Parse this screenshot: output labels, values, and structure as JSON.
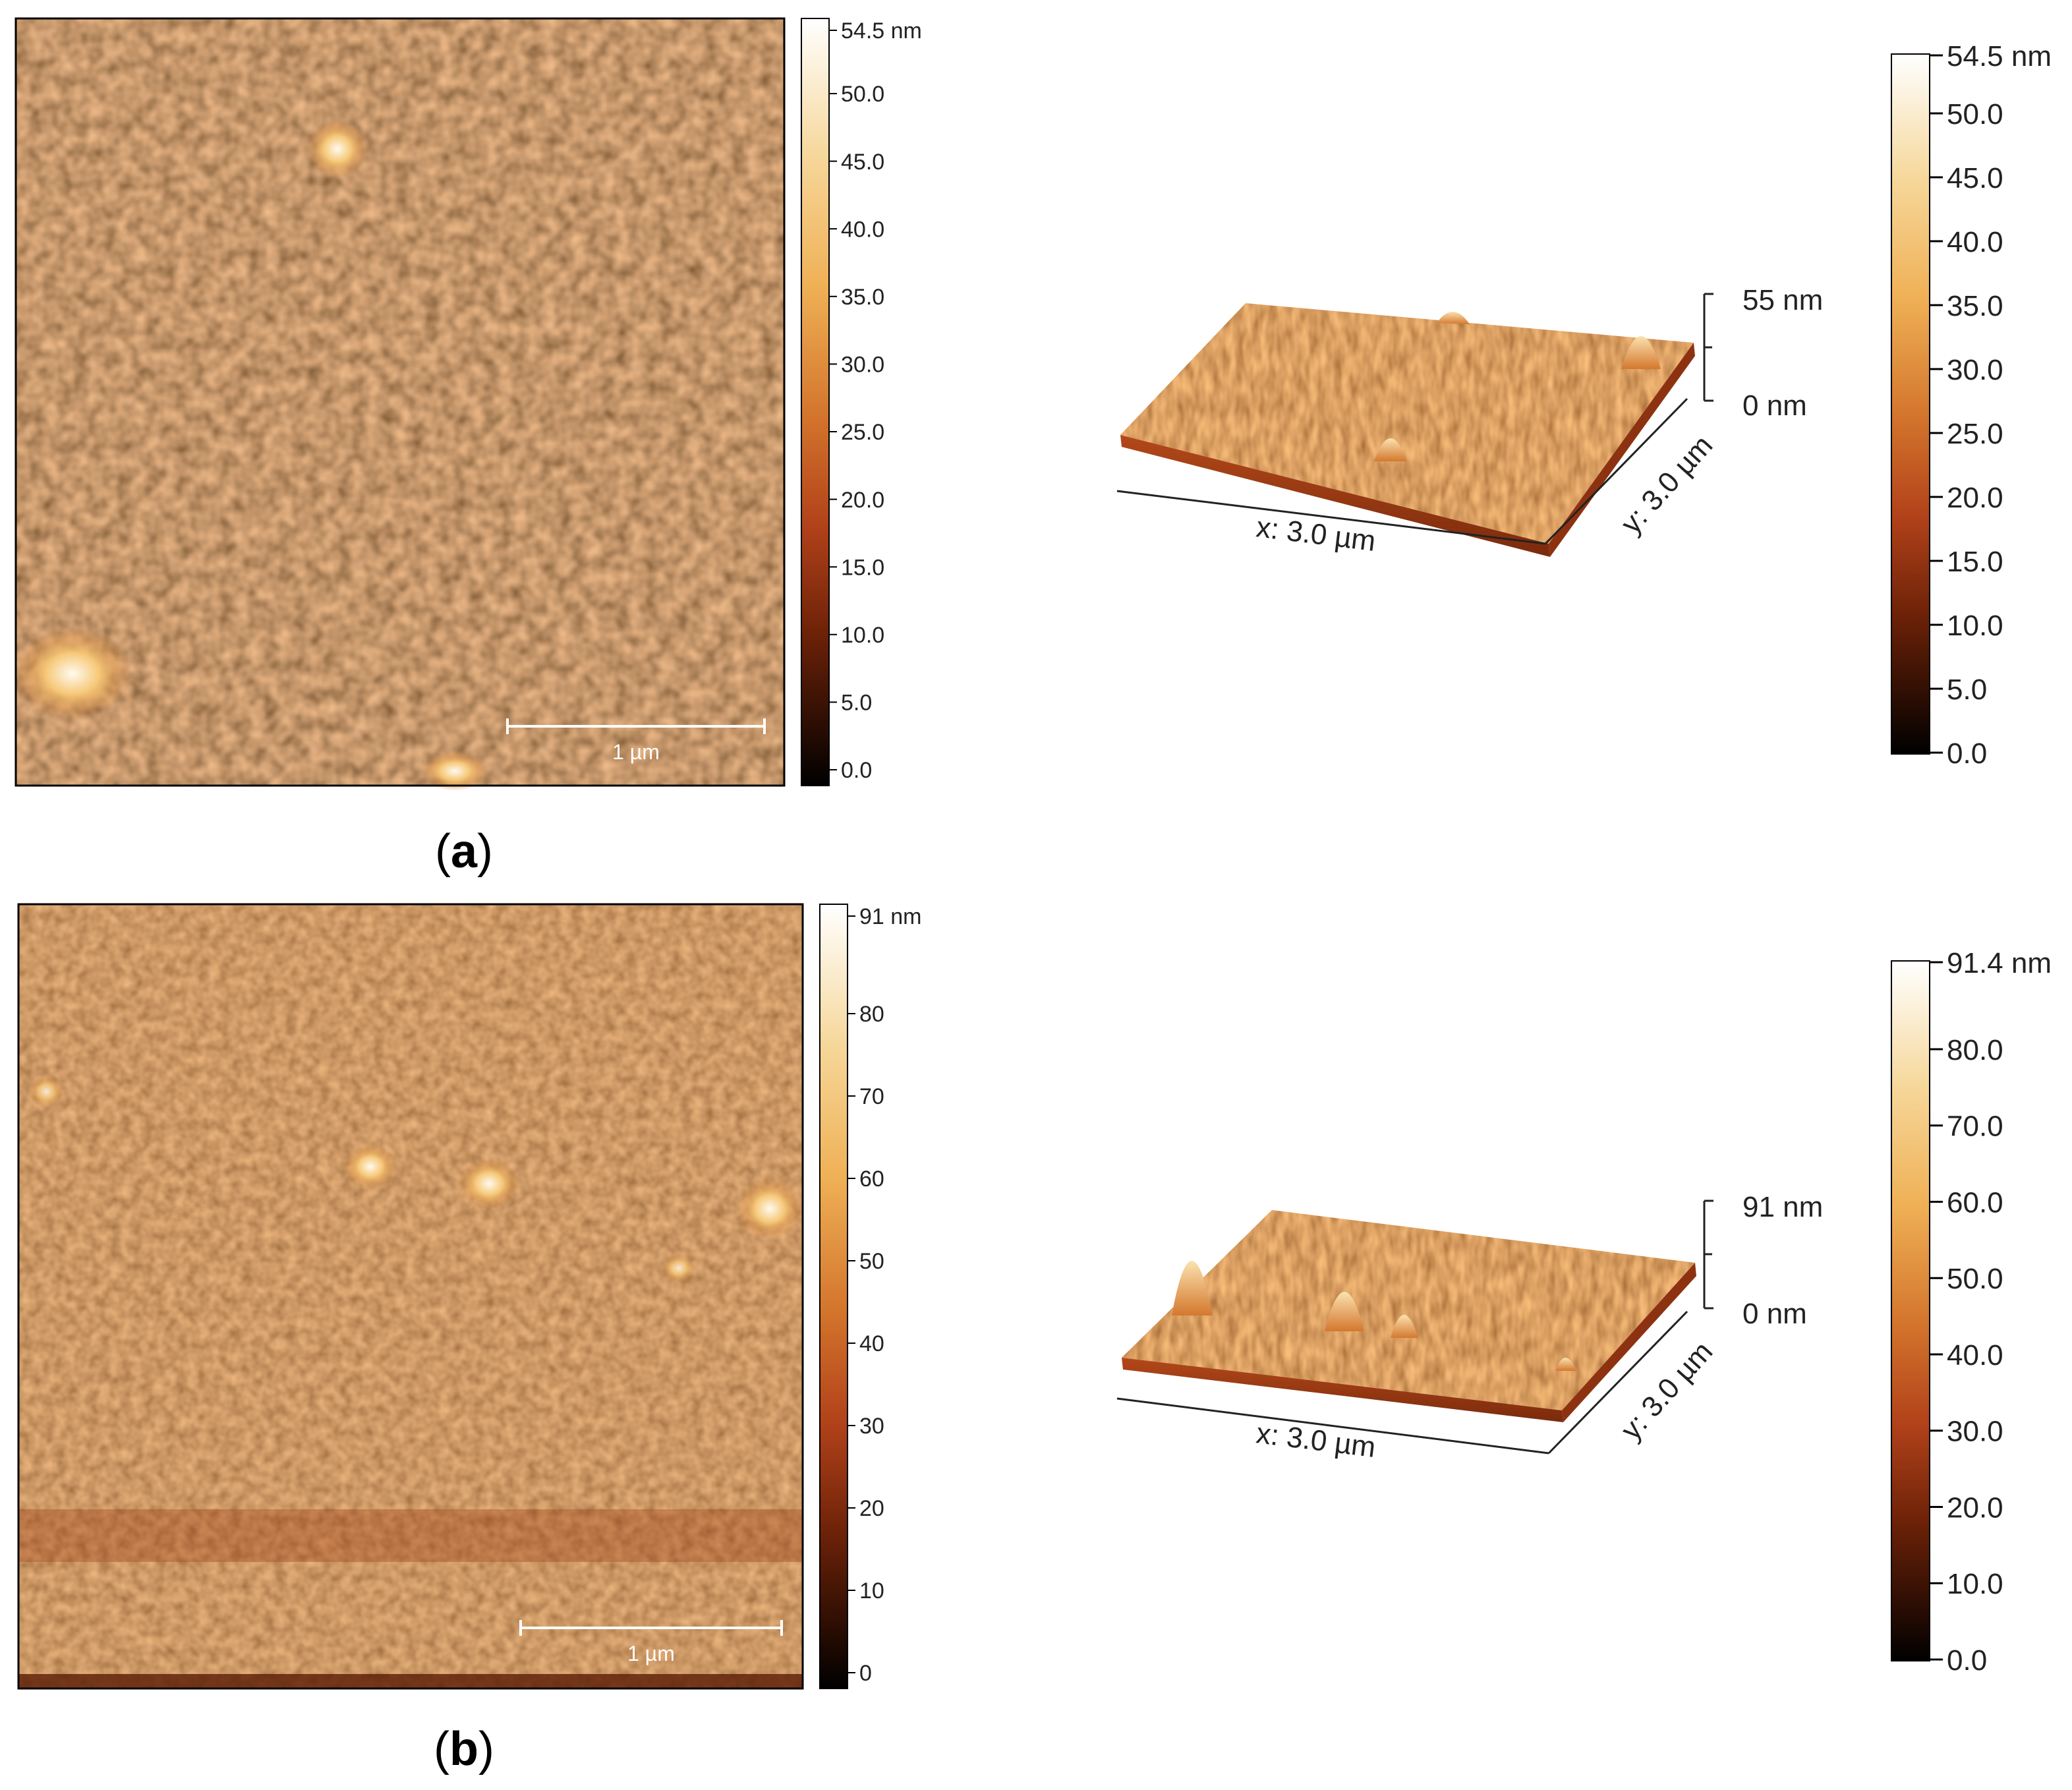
{
  "panels": [
    {
      "caption_letter": "a",
      "map": {
        "scale_bar_label": "1 µm",
        "colorbar_ticks": [
          "54.5 nm",
          "50.0",
          "45.0",
          "40.0",
          "35.0",
          "30.0",
          "25.0",
          "20.0",
          "15.0",
          "10.0",
          "5.0",
          "0.0"
        ]
      },
      "surface3d": {
        "z_top_label": "55 nm",
        "z_bottom_label": "0 nm",
        "x_label": "x: 3.0 µm",
        "y_label": "y: 3.0 µm"
      },
      "colorbar3d": {
        "ticks": [
          "54.5 nm",
          "50.0",
          "45.0",
          "40.0",
          "35.0",
          "30.0",
          "25.0",
          "20.0",
          "15.0",
          "10.0",
          "5.0",
          "0.0"
        ]
      }
    },
    {
      "caption_letter": "b",
      "map": {
        "scale_bar_label": "1 µm",
        "colorbar_ticks": [
          "91 nm",
          "80",
          "70",
          "60",
          "50",
          "40",
          "30",
          "20",
          "10",
          "0"
        ]
      },
      "surface3d": {
        "z_top_label": "91 nm",
        "z_bottom_label": "0 nm",
        "x_label": "x: 3.0 µm",
        "y_label": "y: 3.0 µm"
      },
      "colorbar3d": {
        "ticks": [
          "91.4 nm",
          "80.0",
          "70.0",
          "60.0",
          "50.0",
          "40.0",
          "30.0",
          "20.0",
          "10.0",
          "0.0"
        ]
      }
    }
  ],
  "colors": {
    "afm_dark": "#000000",
    "afm_mid": "#b84a14",
    "afm_light": "#f0b050",
    "afm_white": "#ffffff"
  }
}
